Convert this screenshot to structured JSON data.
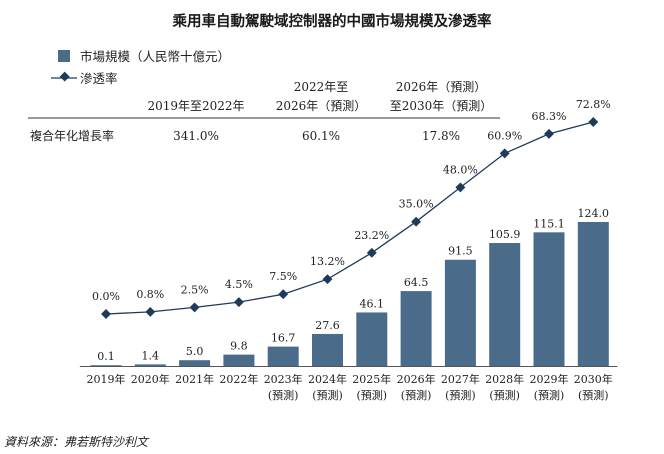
{
  "chart_data": {
    "type": "bar",
    "title": "乘用車自動駕駛域控制器的中國市場規模及滲透率",
    "categories": [
      "2019年",
      "2020年",
      "2021年",
      "2022年",
      "2023年",
      "2024年",
      "2025年",
      "2026年",
      "2027年",
      "2028年",
      "2029年",
      "2030年"
    ],
    "category_notes": [
      "",
      "",
      "",
      "",
      "(預測)",
      "(預測)",
      "(預測)",
      "(預測)",
      "(預測)",
      "(預測)",
      "(預測)",
      "(預測)"
    ],
    "series": [
      {
        "name": "市場規模（人民幣十億元）",
        "type": "bar",
        "color": "#4a6b8a",
        "values": [
          0.1,
          1.4,
          5.0,
          9.8,
          16.7,
          27.6,
          46.1,
          64.5,
          91.5,
          105.9,
          115.1,
          124.0
        ],
        "labels": [
          "0.1",
          "1.4",
          "5.0",
          "9.8",
          "16.7",
          "27.6",
          "46.1",
          "64.5",
          "91.5",
          "105.9",
          "115.1",
          "124.0"
        ]
      },
      {
        "name": "滲透率",
        "type": "line",
        "marker": "diamond",
        "color": "#1f3b5c",
        "values": [
          0.0,
          0.8,
          2.5,
          4.5,
          7.5,
          13.2,
          23.2,
          35.0,
          48.0,
          60.9,
          68.3,
          72.8
        ],
        "labels": [
          "0.0%",
          "0.8%",
          "2.5%",
          "4.5%",
          "7.5%",
          "13.2%",
          "23.2%",
          "35.0%",
          "48.0%",
          "60.9%",
          "68.3%",
          "72.8%"
        ]
      }
    ],
    "bar_ylim": [
      0,
      124.0
    ],
    "line_ylim": [
      0,
      72.8
    ],
    "legend_position": "top-left",
    "grid": false
  },
  "cagr_table": {
    "row_label": "複合年化增長率",
    "columns": [
      {
        "header_lines": [
          "2019年至2022年"
        ],
        "value": "341.0%"
      },
      {
        "header_lines": [
          "2022年至",
          "2026年（預測）"
        ],
        "value": "60.1%"
      },
      {
        "header_lines": [
          "2026年（預測）",
          "至2030年（預測）"
        ],
        "value": "17.8%"
      }
    ]
  },
  "source": "資料來源：弗若斯特沙利文"
}
